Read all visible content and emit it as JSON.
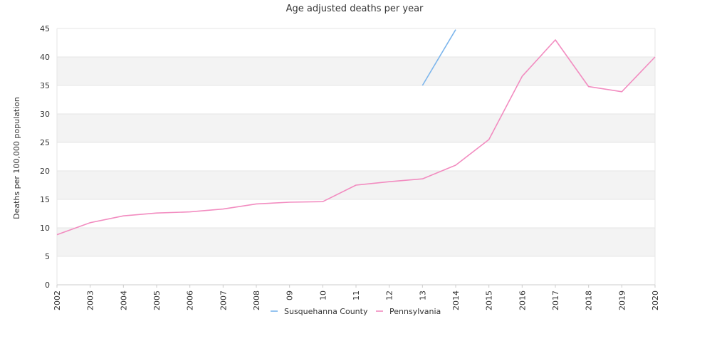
{
  "chart_data": {
    "type": "line",
    "title": "Age adjusted deaths per year",
    "ylabel": "Deaths per 100,000 population",
    "xlabel": "",
    "categories": [
      "2002",
      "2003",
      "2004",
      "2005",
      "2006",
      "2007",
      "2008",
      "09",
      "10",
      "11",
      "12",
      "13",
      "2014",
      "2015",
      "2016",
      "2017",
      "2018",
      "2019",
      "2020"
    ],
    "yticks": [
      0,
      5,
      10,
      15,
      20,
      25,
      30,
      35,
      40,
      45
    ],
    "ylim": [
      0,
      45
    ],
    "grid": "alternating horizontal bands",
    "legend_position": "bottom-center",
    "series": [
      {
        "name": "Susquehanna County",
        "color": "#7cb5ec",
        "values": [
          null,
          null,
          null,
          null,
          null,
          null,
          null,
          null,
          null,
          null,
          null,
          35.0,
          44.8,
          null,
          null,
          null,
          null,
          null,
          null
        ]
      },
      {
        "name": "Pennsylvania",
        "color": "#f28cc0",
        "values": [
          8.8,
          10.9,
          12.1,
          12.6,
          12.8,
          13.3,
          14.2,
          14.5,
          14.6,
          17.5,
          18.1,
          18.6,
          21.0,
          25.5,
          36.6,
          43.0,
          34.8,
          33.9,
          40.0
        ]
      }
    ]
  }
}
